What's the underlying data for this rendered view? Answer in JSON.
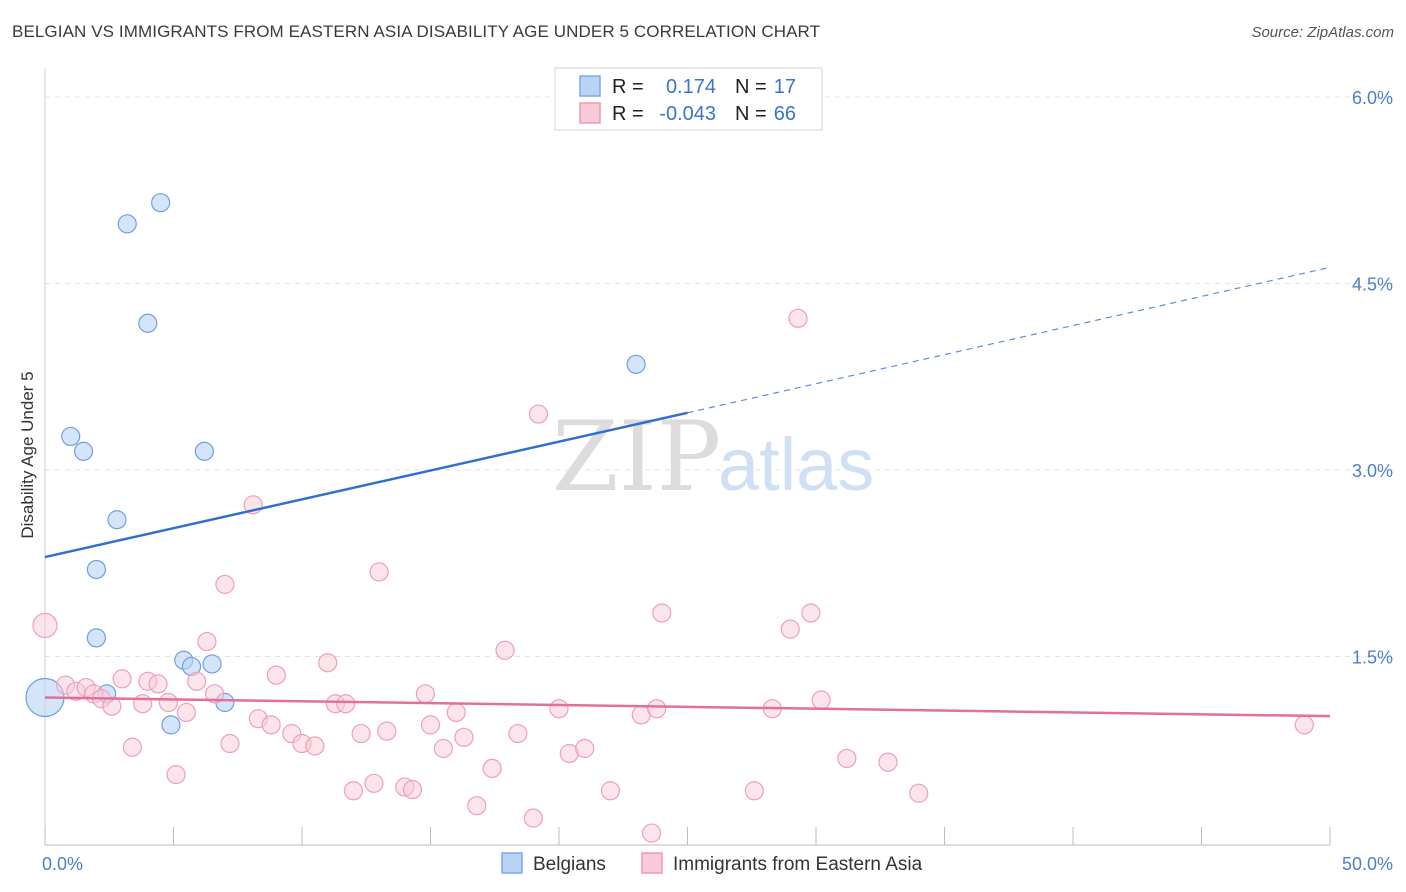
{
  "title": "BELGIAN VS IMMIGRANTS FROM EASTERN ASIA DISABILITY AGE UNDER 5 CORRELATION CHART",
  "source": "Source: ZipAtlas.com",
  "watermark": {
    "zip": "ZIP",
    "atlas": "atlas"
  },
  "legend": {
    "r_label": "R =",
    "n_label": "N =",
    "entries": [
      {
        "r": "0.174",
        "n": "17",
        "color": "#7aa9e6",
        "fill": "#b9d3f5"
      },
      {
        "r": "-0.043",
        "n": "66",
        "color": "#ef9bb4",
        "fill": "#f9c9d7"
      }
    ]
  },
  "bottom_legend": [
    {
      "label": "Belgians",
      "color": "#7aa9e6",
      "fill": "#b9d3f5"
    },
    {
      "label": "Immigrants from Eastern Asia",
      "color": "#ef9bb4",
      "fill": "#f9c9d7"
    }
  ],
  "chart_data": {
    "type": "scatter",
    "ylabel": "Disability Age Under 5",
    "xlabel": "",
    "xlim": [
      0,
      50
    ],
    "ylim": [
      0,
      6.2
    ],
    "x_tick_labels": [
      "0.0%",
      "50.0%"
    ],
    "y_ticks": [
      1.5,
      3.0,
      4.5,
      6.0
    ],
    "y_tick_labels": [
      "1.5%",
      "3.0%",
      "4.5%",
      "6.0%"
    ],
    "grid": true,
    "series": [
      {
        "name": "Belgians",
        "color": "#4a86d4",
        "points": [
          [
            0.0,
            1.17
          ],
          [
            1.0,
            3.27
          ],
          [
            1.5,
            3.15
          ],
          [
            2.0,
            2.2
          ],
          [
            2.0,
            1.65
          ],
          [
            2.4,
            1.2
          ],
          [
            2.8,
            2.6
          ],
          [
            3.2,
            4.98
          ],
          [
            4.0,
            4.18
          ],
          [
            4.5,
            5.15
          ],
          [
            4.9,
            0.95
          ],
          [
            5.4,
            1.47
          ],
          [
            5.7,
            1.42
          ],
          [
            6.2,
            3.15
          ],
          [
            6.5,
            1.44
          ],
          [
            7.0,
            1.13
          ],
          [
            23.0,
            3.85
          ]
        ],
        "trend": {
          "x0": 0.0,
          "y0": 2.3,
          "x1": 25.0,
          "y1": 3.46,
          "dashed_to_x": 50.0,
          "dashed_to_y": 4.63
        }
      },
      {
        "name": "Immigrants from Eastern Asia",
        "color": "#e26d95",
        "points": [
          [
            0.0,
            1.75
          ],
          [
            0.8,
            1.27
          ],
          [
            1.2,
            1.22
          ],
          [
            1.6,
            1.25
          ],
          [
            1.9,
            1.2
          ],
          [
            2.2,
            1.16
          ],
          [
            2.6,
            1.1
          ],
          [
            3.0,
            1.32
          ],
          [
            3.4,
            0.77
          ],
          [
            3.8,
            1.12
          ],
          [
            4.0,
            1.3
          ],
          [
            4.4,
            1.28
          ],
          [
            4.8,
            1.13
          ],
          [
            5.1,
            0.55
          ],
          [
            5.5,
            1.05
          ],
          [
            5.9,
            1.3
          ],
          [
            6.3,
            1.62
          ],
          [
            6.6,
            1.2
          ],
          [
            7.0,
            2.08
          ],
          [
            7.2,
            0.8
          ],
          [
            8.1,
            2.72
          ],
          [
            8.3,
            1.0
          ],
          [
            8.8,
            0.95
          ],
          [
            9.0,
            1.35
          ],
          [
            9.6,
            0.88
          ],
          [
            10.0,
            0.8
          ],
          [
            10.5,
            0.78
          ],
          [
            11.0,
            1.45
          ],
          [
            11.3,
            1.12
          ],
          [
            11.7,
            1.12
          ],
          [
            12.0,
            0.42
          ],
          [
            12.3,
            0.88
          ],
          [
            12.8,
            0.48
          ],
          [
            13.0,
            2.18
          ],
          [
            13.3,
            0.9
          ],
          [
            14.0,
            0.45
          ],
          [
            14.3,
            0.43
          ],
          [
            14.8,
            1.2
          ],
          [
            15.0,
            0.95
          ],
          [
            15.5,
            0.76
          ],
          [
            16.0,
            1.05
          ],
          [
            16.3,
            0.85
          ],
          [
            16.8,
            0.3
          ],
          [
            17.4,
            0.6
          ],
          [
            17.9,
            1.55
          ],
          [
            18.4,
            0.88
          ],
          [
            19.0,
            0.2
          ],
          [
            19.2,
            3.45
          ],
          [
            20.0,
            1.08
          ],
          [
            20.4,
            0.72
          ],
          [
            21.0,
            0.76
          ],
          [
            22.0,
            0.42
          ],
          [
            23.2,
            1.03
          ],
          [
            23.6,
            0.08
          ],
          [
            23.8,
            1.08
          ],
          [
            24.0,
            1.85
          ],
          [
            27.6,
            0.42
          ],
          [
            28.3,
            1.08
          ],
          [
            29.0,
            1.72
          ],
          [
            29.3,
            4.22
          ],
          [
            29.8,
            1.85
          ],
          [
            30.2,
            1.15
          ],
          [
            31.2,
            0.68
          ],
          [
            32.8,
            0.65
          ],
          [
            34.0,
            0.4
          ],
          [
            49.0,
            0.95
          ]
        ],
        "trend": {
          "x0": 0.0,
          "y0": 1.17,
          "x1": 50.0,
          "y1": 1.02
        }
      }
    ]
  }
}
